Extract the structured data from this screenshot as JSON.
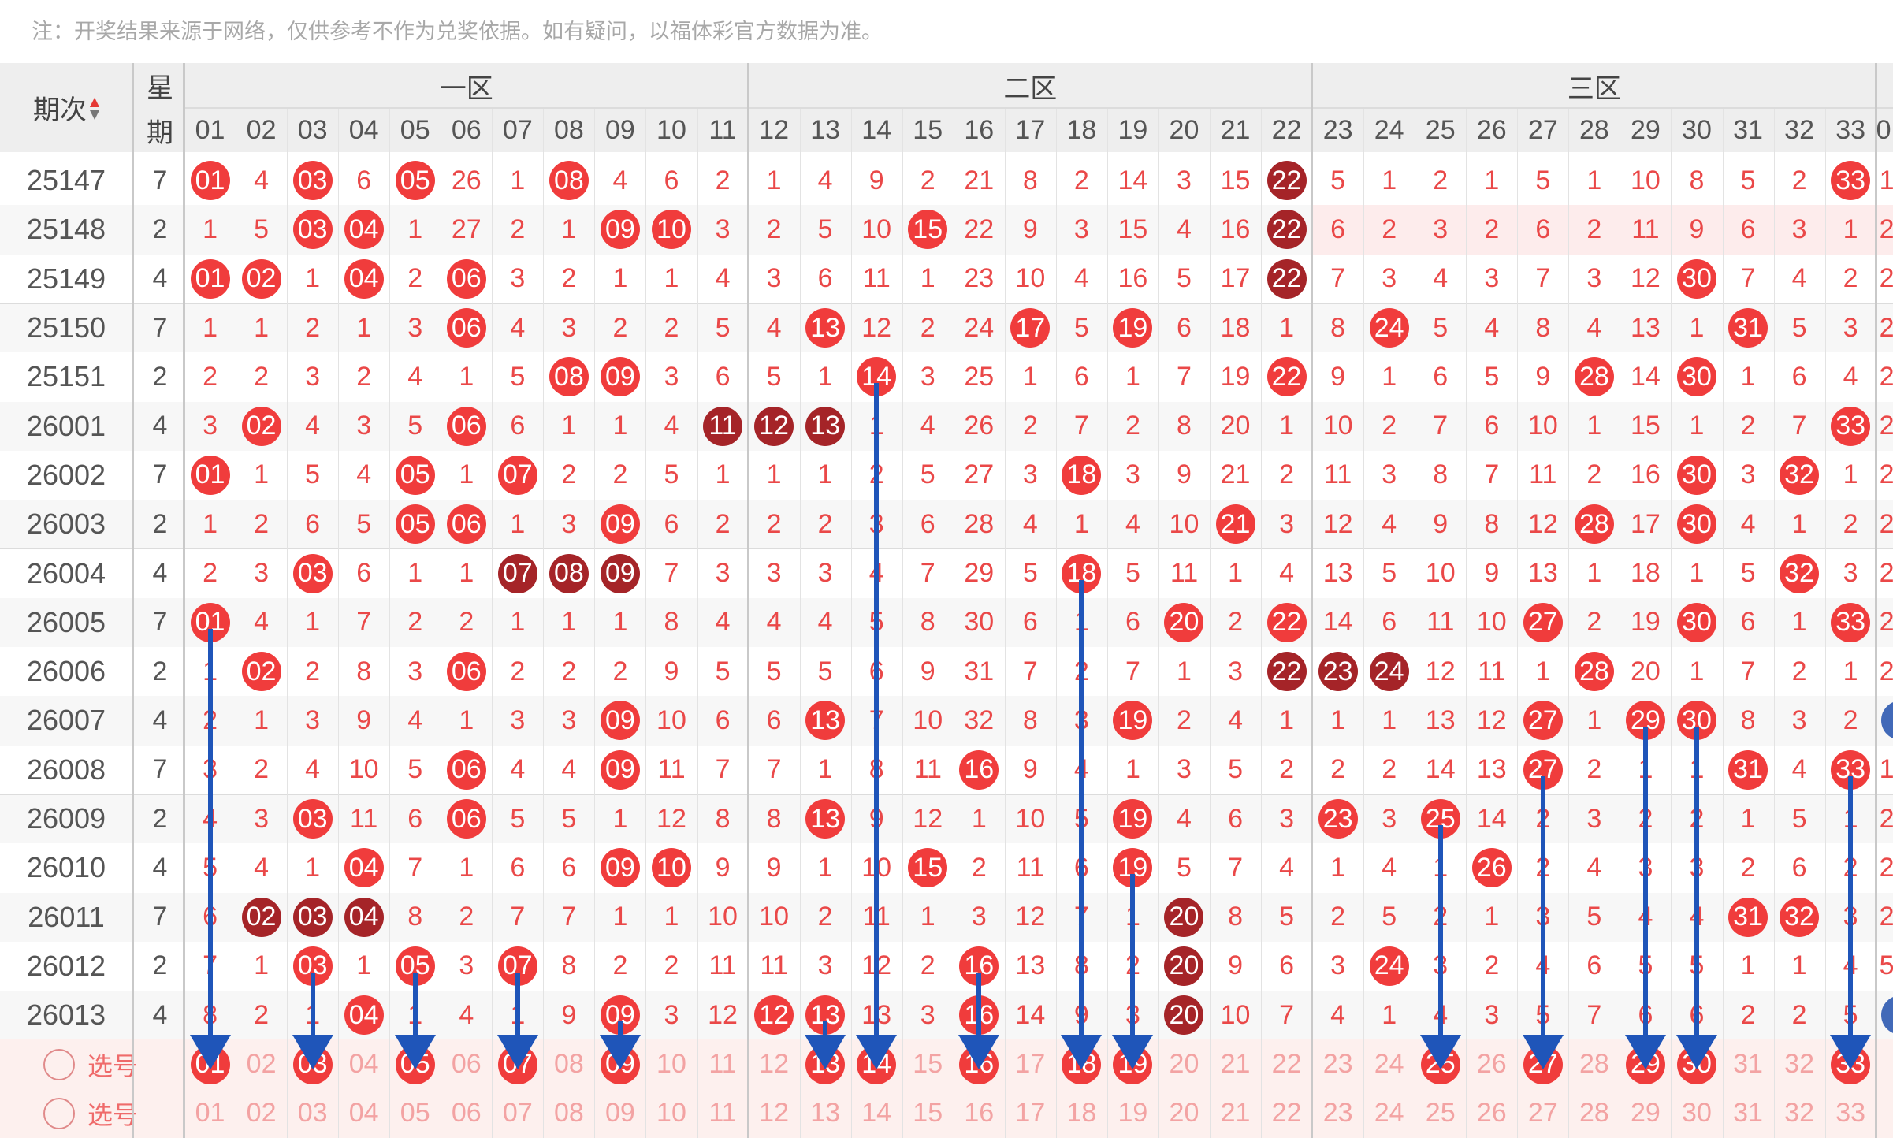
{
  "note": "注：开奖结果来源于网络，仅供参考不作为兑奖依据。如有疑问，以福体彩官方数据为准。",
  "header": {
    "issue_label": "期次",
    "week_label_top": "星",
    "week_label_bottom": "期",
    "zones": [
      "一区",
      "二区",
      "三区"
    ],
    "columns": [
      "01",
      "02",
      "03",
      "04",
      "05",
      "06",
      "07",
      "08",
      "09",
      "10",
      "11",
      "12",
      "13",
      "14",
      "15",
      "16",
      "17",
      "18",
      "19",
      "20",
      "21",
      "22",
      "23",
      "24",
      "25",
      "26",
      "27",
      "28",
      "29",
      "30",
      "31",
      "32",
      "33"
    ],
    "cut_column": "0"
  },
  "rows": [
    {
      "issue": "25147",
      "week": "7",
      "cells": [
        {
          "t": "01",
          "b": "r"
        },
        "4",
        {
          "t": "03",
          "b": "r"
        },
        "6",
        {
          "t": "05",
          "b": "r"
        },
        "26",
        "1",
        {
          "t": "08",
          "b": "r"
        },
        "4",
        "6",
        "2",
        "1",
        "4",
        "9",
        "2",
        "21",
        "8",
        "2",
        "14",
        "3",
        "15",
        {
          "t": "22",
          "b": "d"
        },
        "5",
        "1",
        "2",
        "1",
        "5",
        "1",
        "10",
        "8",
        "5",
        "2",
        {
          "t": "33",
          "b": "r"
        }
      ],
      "edge": "1"
    },
    {
      "issue": "25148",
      "week": "2",
      "cells": [
        "1",
        "5",
        {
          "t": "03",
          "b": "r"
        },
        {
          "t": "04",
          "b": "r"
        },
        "1",
        "27",
        "2",
        "1",
        {
          "t": "09",
          "b": "r"
        },
        {
          "t": "10",
          "b": "r"
        },
        "3",
        "2",
        "5",
        "10",
        {
          "t": "15",
          "b": "r"
        },
        "22",
        "9",
        "3",
        "15",
        "4",
        "16",
        {
          "t": "22",
          "b": "d"
        },
        "6",
        "2",
        "3",
        "2",
        "6",
        "2",
        "11",
        "9",
        "6",
        "3",
        "1"
      ],
      "edge": "2"
    },
    {
      "issue": "25149",
      "week": "4",
      "cells": [
        {
          "t": "01",
          "b": "r"
        },
        {
          "t": "02",
          "b": "r"
        },
        "1",
        {
          "t": "04",
          "b": "r"
        },
        "2",
        {
          "t": "06",
          "b": "r"
        },
        "3",
        "2",
        "1",
        "1",
        "4",
        "3",
        "6",
        "11",
        "1",
        "23",
        "10",
        "4",
        "16",
        "5",
        "17",
        {
          "t": "22",
          "b": "d"
        },
        "7",
        "3",
        "4",
        "3",
        "7",
        "3",
        "12",
        {
          "t": "30",
          "b": "r"
        },
        "7",
        "4",
        "2"
      ],
      "edge": "2"
    },
    {
      "issue": "25150",
      "week": "7",
      "cells": [
        "1",
        "1",
        "2",
        "1",
        "3",
        {
          "t": "06",
          "b": "r"
        },
        "4",
        "3",
        "2",
        "2",
        "5",
        "4",
        {
          "t": "13",
          "b": "r"
        },
        "12",
        "2",
        "24",
        {
          "t": "17",
          "b": "r"
        },
        "5",
        {
          "t": "19",
          "b": "r"
        },
        "6",
        "18",
        "1",
        "8",
        {
          "t": "24",
          "b": "r"
        },
        "5",
        "4",
        "8",
        "4",
        "13",
        "1",
        {
          "t": "31",
          "b": "r"
        },
        "5",
        "3"
      ],
      "edge": "2"
    },
    {
      "issue": "25151",
      "week": "2",
      "cells": [
        "2",
        "2",
        "3",
        "2",
        "4",
        "1",
        "5",
        {
          "t": "08",
          "b": "r"
        },
        {
          "t": "09",
          "b": "r"
        },
        "3",
        "6",
        "5",
        "1",
        {
          "t": "14",
          "b": "r"
        },
        "3",
        "25",
        "1",
        "6",
        "1",
        "7",
        "19",
        {
          "t": "22",
          "b": "r"
        },
        "9",
        "1",
        "6",
        "5",
        "9",
        {
          "t": "28",
          "b": "r"
        },
        "14",
        {
          "t": "30",
          "b": "r"
        },
        "1",
        "6",
        "4"
      ],
      "edge": "2"
    },
    {
      "issue": "26001",
      "week": "4",
      "cells": [
        "3",
        {
          "t": "02",
          "b": "r"
        },
        "4",
        "3",
        "5",
        {
          "t": "06",
          "b": "r"
        },
        "6",
        "1",
        "1",
        "4",
        {
          "t": "11",
          "b": "d"
        },
        {
          "t": "12",
          "b": "d"
        },
        {
          "t": "13",
          "b": "d"
        },
        "1",
        "4",
        "26",
        "2",
        "7",
        "2",
        "8",
        "20",
        "1",
        "10",
        "2",
        "7",
        "6",
        "10",
        "1",
        "15",
        "1",
        "2",
        "7",
        {
          "t": "33",
          "b": "r"
        }
      ],
      "edge": "2"
    },
    {
      "issue": "26002",
      "week": "7",
      "cells": [
        {
          "t": "01",
          "b": "r"
        },
        "1",
        "5",
        "4",
        {
          "t": "05",
          "b": "r"
        },
        "1",
        {
          "t": "07",
          "b": "r"
        },
        "2",
        "2",
        "5",
        "1",
        "1",
        "1",
        "2",
        "5",
        "27",
        "3",
        {
          "t": "18",
          "b": "r"
        },
        "3",
        "9",
        "21",
        "2",
        "11",
        "3",
        "8",
        "7",
        "11",
        "2",
        "16",
        {
          "t": "30",
          "b": "r"
        },
        "3",
        {
          "t": "32",
          "b": "r"
        },
        "1"
      ],
      "edge": "2"
    },
    {
      "issue": "26003",
      "week": "2",
      "cells": [
        "1",
        "2",
        "6",
        "5",
        {
          "t": "05",
          "b": "r"
        },
        {
          "t": "06",
          "b": "r"
        },
        "1",
        "3",
        {
          "t": "09",
          "b": "r"
        },
        "6",
        "2",
        "2",
        "2",
        "3",
        "6",
        "28",
        "4",
        "1",
        "4",
        "10",
        {
          "t": "21",
          "b": "r"
        },
        "3",
        "12",
        "4",
        "9",
        "8",
        "12",
        {
          "t": "28",
          "b": "r"
        },
        "17",
        {
          "t": "30",
          "b": "r"
        },
        "4",
        "1",
        "2"
      ],
      "edge": "2"
    },
    {
      "issue": "26004",
      "week": "4",
      "cells": [
        "2",
        "3",
        {
          "t": "03",
          "b": "r"
        },
        "6",
        "1",
        "1",
        {
          "t": "07",
          "b": "d"
        },
        {
          "t": "08",
          "b": "d"
        },
        {
          "t": "09",
          "b": "d"
        },
        "7",
        "3",
        "3",
        "3",
        "4",
        "7",
        "29",
        "5",
        {
          "t": "18",
          "b": "r"
        },
        "5",
        "11",
        "1",
        "4",
        "13",
        "5",
        "10",
        "9",
        "13",
        "1",
        "18",
        "1",
        "5",
        {
          "t": "32",
          "b": "r"
        },
        "3"
      ],
      "edge": "2"
    },
    {
      "issue": "26005",
      "week": "7",
      "cells": [
        {
          "t": "01",
          "b": "r"
        },
        "4",
        "1",
        "7",
        "2",
        "2",
        "1",
        "1",
        "1",
        "8",
        "4",
        "4",
        "4",
        "5",
        "8",
        "30",
        "6",
        "1",
        "6",
        {
          "t": "20",
          "b": "r"
        },
        "2",
        {
          "t": "22",
          "b": "r"
        },
        "14",
        "6",
        "11",
        "10",
        {
          "t": "27",
          "b": "r"
        },
        "2",
        "19",
        {
          "t": "30",
          "b": "r"
        },
        "6",
        "1",
        {
          "t": "33",
          "b": "r"
        }
      ],
      "edge": "2"
    },
    {
      "issue": "26006",
      "week": "2",
      "cells": [
        "1",
        {
          "t": "02",
          "b": "r"
        },
        "2",
        "8",
        "3",
        {
          "t": "06",
          "b": "r"
        },
        "2",
        "2",
        "2",
        "9",
        "5",
        "5",
        "5",
        "6",
        "9",
        "31",
        "7",
        "2",
        "7",
        "1",
        "3",
        {
          "t": "22",
          "b": "d"
        },
        {
          "t": "23",
          "b": "d"
        },
        {
          "t": "24",
          "b": "d"
        },
        "12",
        "11",
        "1",
        {
          "t": "28",
          "b": "r"
        },
        "20",
        "1",
        "7",
        "2",
        "1"
      ],
      "edge": "2"
    },
    {
      "issue": "26007",
      "week": "4",
      "cells": [
        "2",
        "1",
        "3",
        "9",
        "4",
        "1",
        "3",
        "3",
        {
          "t": "09",
          "b": "r"
        },
        "10",
        "6",
        "6",
        {
          "t": "13",
          "b": "r"
        },
        "7",
        "10",
        "32",
        "8",
        "3",
        {
          "t": "19",
          "b": "r"
        },
        "2",
        "4",
        "1",
        "1",
        "1",
        "13",
        "12",
        {
          "t": "27",
          "b": "r"
        },
        "1",
        {
          "t": "29",
          "b": "r"
        },
        {
          "t": "30",
          "b": "r"
        },
        "8",
        "3",
        "2"
      ],
      "edge": "ball"
    },
    {
      "issue": "26008",
      "week": "7",
      "cells": [
        "3",
        "2",
        "4",
        "10",
        "5",
        {
          "t": "06",
          "b": "r"
        },
        "4",
        "4",
        {
          "t": "09",
          "b": "r"
        },
        "11",
        "7",
        "7",
        "1",
        "8",
        "11",
        {
          "t": "16",
          "b": "r"
        },
        "9",
        "4",
        "1",
        "3",
        "5",
        "2",
        "2",
        "2",
        "14",
        "13",
        {
          "t": "27",
          "b": "r"
        },
        "2",
        "1",
        "1",
        {
          "t": "31",
          "b": "r"
        },
        "4",
        {
          "t": "33",
          "b": "r"
        }
      ],
      "edge": "1"
    },
    {
      "issue": "26009",
      "week": "2",
      "cells": [
        "4",
        "3",
        {
          "t": "03",
          "b": "r"
        },
        "11",
        "6",
        {
          "t": "06",
          "b": "r"
        },
        "5",
        "5",
        "1",
        "12",
        "8",
        "8",
        {
          "t": "13",
          "b": "r"
        },
        "9",
        "12",
        "1",
        "10",
        "5",
        {
          "t": "19",
          "b": "r"
        },
        "4",
        "6",
        "3",
        {
          "t": "23",
          "b": "r"
        },
        "3",
        {
          "t": "25",
          "b": "r"
        },
        "14",
        "2",
        "3",
        "2",
        "2",
        "1",
        "5",
        "1"
      ],
      "edge": "2"
    },
    {
      "issue": "26010",
      "week": "4",
      "cells": [
        "5",
        "4",
        "1",
        {
          "t": "04",
          "b": "r"
        },
        "7",
        "1",
        "6",
        "6",
        {
          "t": "09",
          "b": "r"
        },
        {
          "t": "10",
          "b": "r"
        },
        "9",
        "9",
        "1",
        "10",
        {
          "t": "15",
          "b": "r"
        },
        "2",
        "11",
        "6",
        {
          "t": "19",
          "b": "r"
        },
        "5",
        "7",
        "4",
        "1",
        "4",
        "1",
        {
          "t": "26",
          "b": "r"
        },
        "2",
        "4",
        "3",
        "3",
        "2",
        "6",
        "2"
      ],
      "edge": "2"
    },
    {
      "issue": "26011",
      "week": "7",
      "cells": [
        "6",
        {
          "t": "02",
          "b": "d"
        },
        {
          "t": "03",
          "b": "d"
        },
        {
          "t": "04",
          "b": "d"
        },
        "8",
        "2",
        "7",
        "7",
        "1",
        "1",
        "10",
        "10",
        "2",
        "11",
        "1",
        "3",
        "12",
        "7",
        "1",
        {
          "t": "20",
          "b": "d"
        },
        "8",
        "5",
        "2",
        "5",
        "2",
        "1",
        "3",
        "5",
        "4",
        "4",
        {
          "t": "31",
          "b": "r"
        },
        {
          "t": "32",
          "b": "r"
        },
        "3"
      ],
      "edge": "2"
    },
    {
      "issue": "26012",
      "week": "2",
      "cells": [
        "7",
        "1",
        {
          "t": "03",
          "b": "r"
        },
        "1",
        {
          "t": "05",
          "b": "r"
        },
        "3",
        {
          "t": "07",
          "b": "r"
        },
        "8",
        "2",
        "2",
        "11",
        "11",
        "3",
        "12",
        "2",
        {
          "t": "16",
          "b": "r"
        },
        "13",
        "8",
        "2",
        {
          "t": "20",
          "b": "d"
        },
        "9",
        "6",
        "3",
        {
          "t": "24",
          "b": "r"
        },
        "3",
        "2",
        "4",
        "6",
        "5",
        "5",
        "1",
        "1",
        "4"
      ],
      "edge": "5"
    },
    {
      "issue": "26013",
      "week": "4",
      "cells": [
        "8",
        "2",
        "1",
        {
          "t": "04",
          "b": "r"
        },
        "1",
        "4",
        "1",
        "9",
        {
          "t": "09",
          "b": "r"
        },
        "3",
        "12",
        {
          "t": "12",
          "b": "r"
        },
        {
          "t": "13",
          "b": "r"
        },
        "13",
        "3",
        {
          "t": "16",
          "b": "r"
        },
        "14",
        "9",
        "3",
        {
          "t": "20",
          "b": "d"
        },
        "10",
        "7",
        "4",
        "1",
        "4",
        "3",
        "5",
        "7",
        "6",
        "6",
        "2",
        "2",
        "5"
      ],
      "edge": "ball"
    }
  ],
  "select_rows": [
    {
      "label": "选号",
      "selected": [
        "01",
        "03",
        "05",
        "07",
        "09",
        "13",
        "14",
        "16",
        "18",
        "19",
        "25",
        "27",
        "29",
        "30",
        "33"
      ]
    },
    {
      "label": "选号",
      "selected": []
    }
  ],
  "arrows": [
    {
      "col": "01",
      "from_issue": "26005"
    },
    {
      "col": "03",
      "from_issue": "26012"
    },
    {
      "col": "05",
      "from_issue": "26012"
    },
    {
      "col": "07",
      "from_issue": "26012"
    },
    {
      "col": "09",
      "from_issue": "26013"
    },
    {
      "col": "13",
      "from_issue": "26013"
    },
    {
      "col": "14",
      "from_issue": "25151"
    },
    {
      "col": "16",
      "from_issue": "26012"
    },
    {
      "col": "18",
      "from_issue": "26004"
    },
    {
      "col": "19",
      "from_issue": "26010"
    },
    {
      "col": "25",
      "from_issue": "26009"
    },
    {
      "col": "27",
      "from_issue": "26008"
    },
    {
      "col": "29",
      "from_issue": "26007"
    },
    {
      "col": "30",
      "from_issue": "26007"
    },
    {
      "col": "33",
      "from_issue": "26008"
    }
  ],
  "colors": {
    "ball": "#f03c3c",
    "ball_dark": "#a52428",
    "arrow": "#1f55b9",
    "miss": "#ea4848",
    "sort_up": "#e53935",
    "sort_down": "#777777"
  }
}
